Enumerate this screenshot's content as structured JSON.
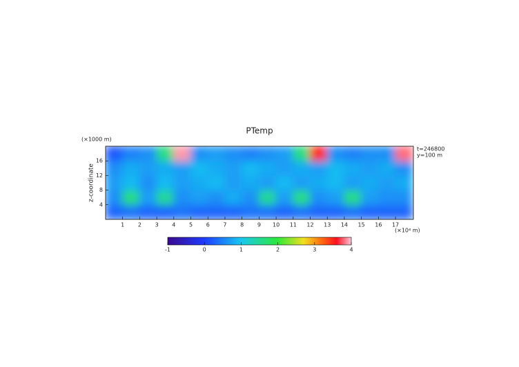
{
  "chart_data": {
    "type": "heatmap",
    "title": "PTemp",
    "y_unit": "(×1000 m)",
    "x_unit": "(×10⁴ m)",
    "ylabel": "z-coordinate",
    "annotations": [
      "t=246800",
      "y=100 m"
    ],
    "xbins": [
      0,
      1,
      2,
      3,
      4,
      5,
      6,
      7,
      8,
      9,
      10,
      11,
      12,
      13,
      14,
      15,
      16,
      17,
      18
    ],
    "ybins": [
      0,
      4,
      8,
      12,
      16,
      20
    ],
    "values": [
      [
        0.3,
        0.4,
        0.3,
        0.3,
        0.4,
        0.3,
        0.3,
        0.3,
        0.4,
        0.4,
        0.3,
        0.4,
        0.3,
        0.3,
        0.4,
        0.3,
        0.3,
        0.3
      ],
      [
        0.6,
        1.6,
        0.7,
        1.5,
        0.6,
        0.7,
        0.6,
        0.8,
        0.6,
        1.5,
        0.7,
        1.6,
        0.6,
        0.7,
        1.6,
        0.7,
        0.6,
        0.6
      ],
      [
        0.7,
        0.9,
        0.6,
        0.9,
        0.7,
        0.8,
        0.9,
        0.7,
        0.8,
        0.7,
        0.9,
        0.7,
        0.8,
        0.9,
        0.7,
        0.8,
        0.7,
        0.8
      ],
      [
        0.6,
        0.8,
        0.7,
        0.8,
        0.7,
        0.9,
        0.8,
        0.7,
        0.9,
        0.8,
        0.7,
        0.8,
        0.7,
        0.9,
        0.8,
        0.7,
        0.8,
        0.6
      ],
      [
        0.2,
        0.5,
        0.6,
        1.6,
        3.9,
        0.6,
        0.7,
        0.6,
        0.5,
        0.6,
        0.7,
        1.6,
        3.5,
        0.6,
        0.5,
        0.6,
        0.6,
        3.8
      ]
    ],
    "xlim": [
      0,
      18.05
    ],
    "ylim": [
      0,
      20
    ],
    "xticks": [
      1,
      2,
      3,
      4,
      5,
      6,
      7,
      8,
      9,
      10,
      11,
      12,
      13,
      14,
      15,
      16,
      17
    ],
    "yticks": [
      4,
      8,
      12,
      16
    ],
    "colorbar_ticks": [
      -1,
      0,
      1,
      2,
      3,
      4
    ],
    "colorscale": [
      [
        -1,
        "#3a0a8c"
      ],
      [
        0,
        "#1e3cff"
      ],
      [
        1,
        "#18c8f0"
      ],
      [
        2,
        "#2ee83a"
      ],
      [
        2.7,
        "#f0e020"
      ],
      [
        3.2,
        "#ff6a10"
      ],
      [
        3.6,
        "#ff1020"
      ],
      [
        4,
        "#ffc8d8"
      ]
    ]
  }
}
